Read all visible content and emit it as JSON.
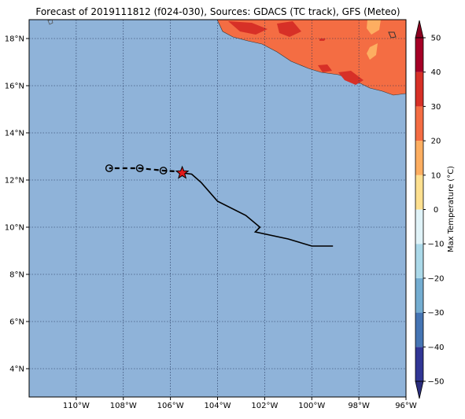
{
  "title": "Forecast of 2019111812 (f024-030), Sources: GDACS (TC track), GFS (Meteo)",
  "map": {
    "lon_range": [
      -112,
      -96
    ],
    "lat_range": [
      2.8,
      18.8
    ],
    "lon_ticks": [
      {
        "value": -110,
        "label": "110°W"
      },
      {
        "value": -108,
        "label": "108°W"
      },
      {
        "value": -106,
        "label": "106°W"
      },
      {
        "value": -104,
        "label": "104°W"
      },
      {
        "value": -102,
        "label": "102°W"
      },
      {
        "value": -100,
        "label": "100°W"
      },
      {
        "value": -98,
        "label": "98°W"
      },
      {
        "value": -96,
        "label": "96°W"
      }
    ],
    "lat_ticks": [
      {
        "value": 4,
        "label": "4°N"
      },
      {
        "value": 6,
        "label": "6°N"
      },
      {
        "value": 8,
        "label": "8°N"
      },
      {
        "value": 10,
        "label": "10°N"
      },
      {
        "value": 12,
        "label": "12°N"
      },
      {
        "value": 14,
        "label": "14°N"
      },
      {
        "value": 16,
        "label": "16°N"
      },
      {
        "value": 18,
        "label": "18°N"
      }
    ],
    "grid": "dotted",
    "ocean_color": "#8fb3d9"
  },
  "observed_track": [
    [
      -99.1,
      9.2
    ],
    [
      -100.0,
      9.2
    ],
    [
      -101.0,
      9.5
    ],
    [
      -102.4,
      9.8
    ],
    [
      -102.2,
      10.0
    ],
    [
      -102.8,
      10.5
    ],
    [
      -104.0,
      11.1
    ],
    [
      -104.7,
      11.9
    ],
    [
      -105.1,
      12.25
    ],
    [
      -105.5,
      12.3
    ]
  ],
  "forecast_track": [
    [
      -105.5,
      12.35
    ],
    [
      -106.3,
      12.4
    ],
    [
      -107.3,
      12.5
    ],
    [
      -108.6,
      12.5
    ]
  ],
  "forecast_points": [
    [
      -106.3,
      12.4
    ],
    [
      -107.3,
      12.5
    ],
    [
      -108.6,
      12.5
    ]
  ],
  "current_position": [
    -105.5,
    12.3
  ],
  "colorbar": {
    "label": "Max Temperature (°C)",
    "vmin": -50,
    "vmax": 50,
    "step": 10,
    "tick_labels": [
      "−50",
      "−40",
      "−30",
      "−20",
      "−10",
      "0",
      "10",
      "20",
      "30",
      "40",
      "50"
    ],
    "colors": [
      "#313695",
      "#4575b4",
      "#74add1",
      "#abd9e9",
      "#e0f3f8",
      "#fee090",
      "#fdae61",
      "#f46d43",
      "#d73027",
      "#a50026"
    ],
    "extend_low": "#2b2e7d",
    "extend_high": "#8b0020"
  }
}
